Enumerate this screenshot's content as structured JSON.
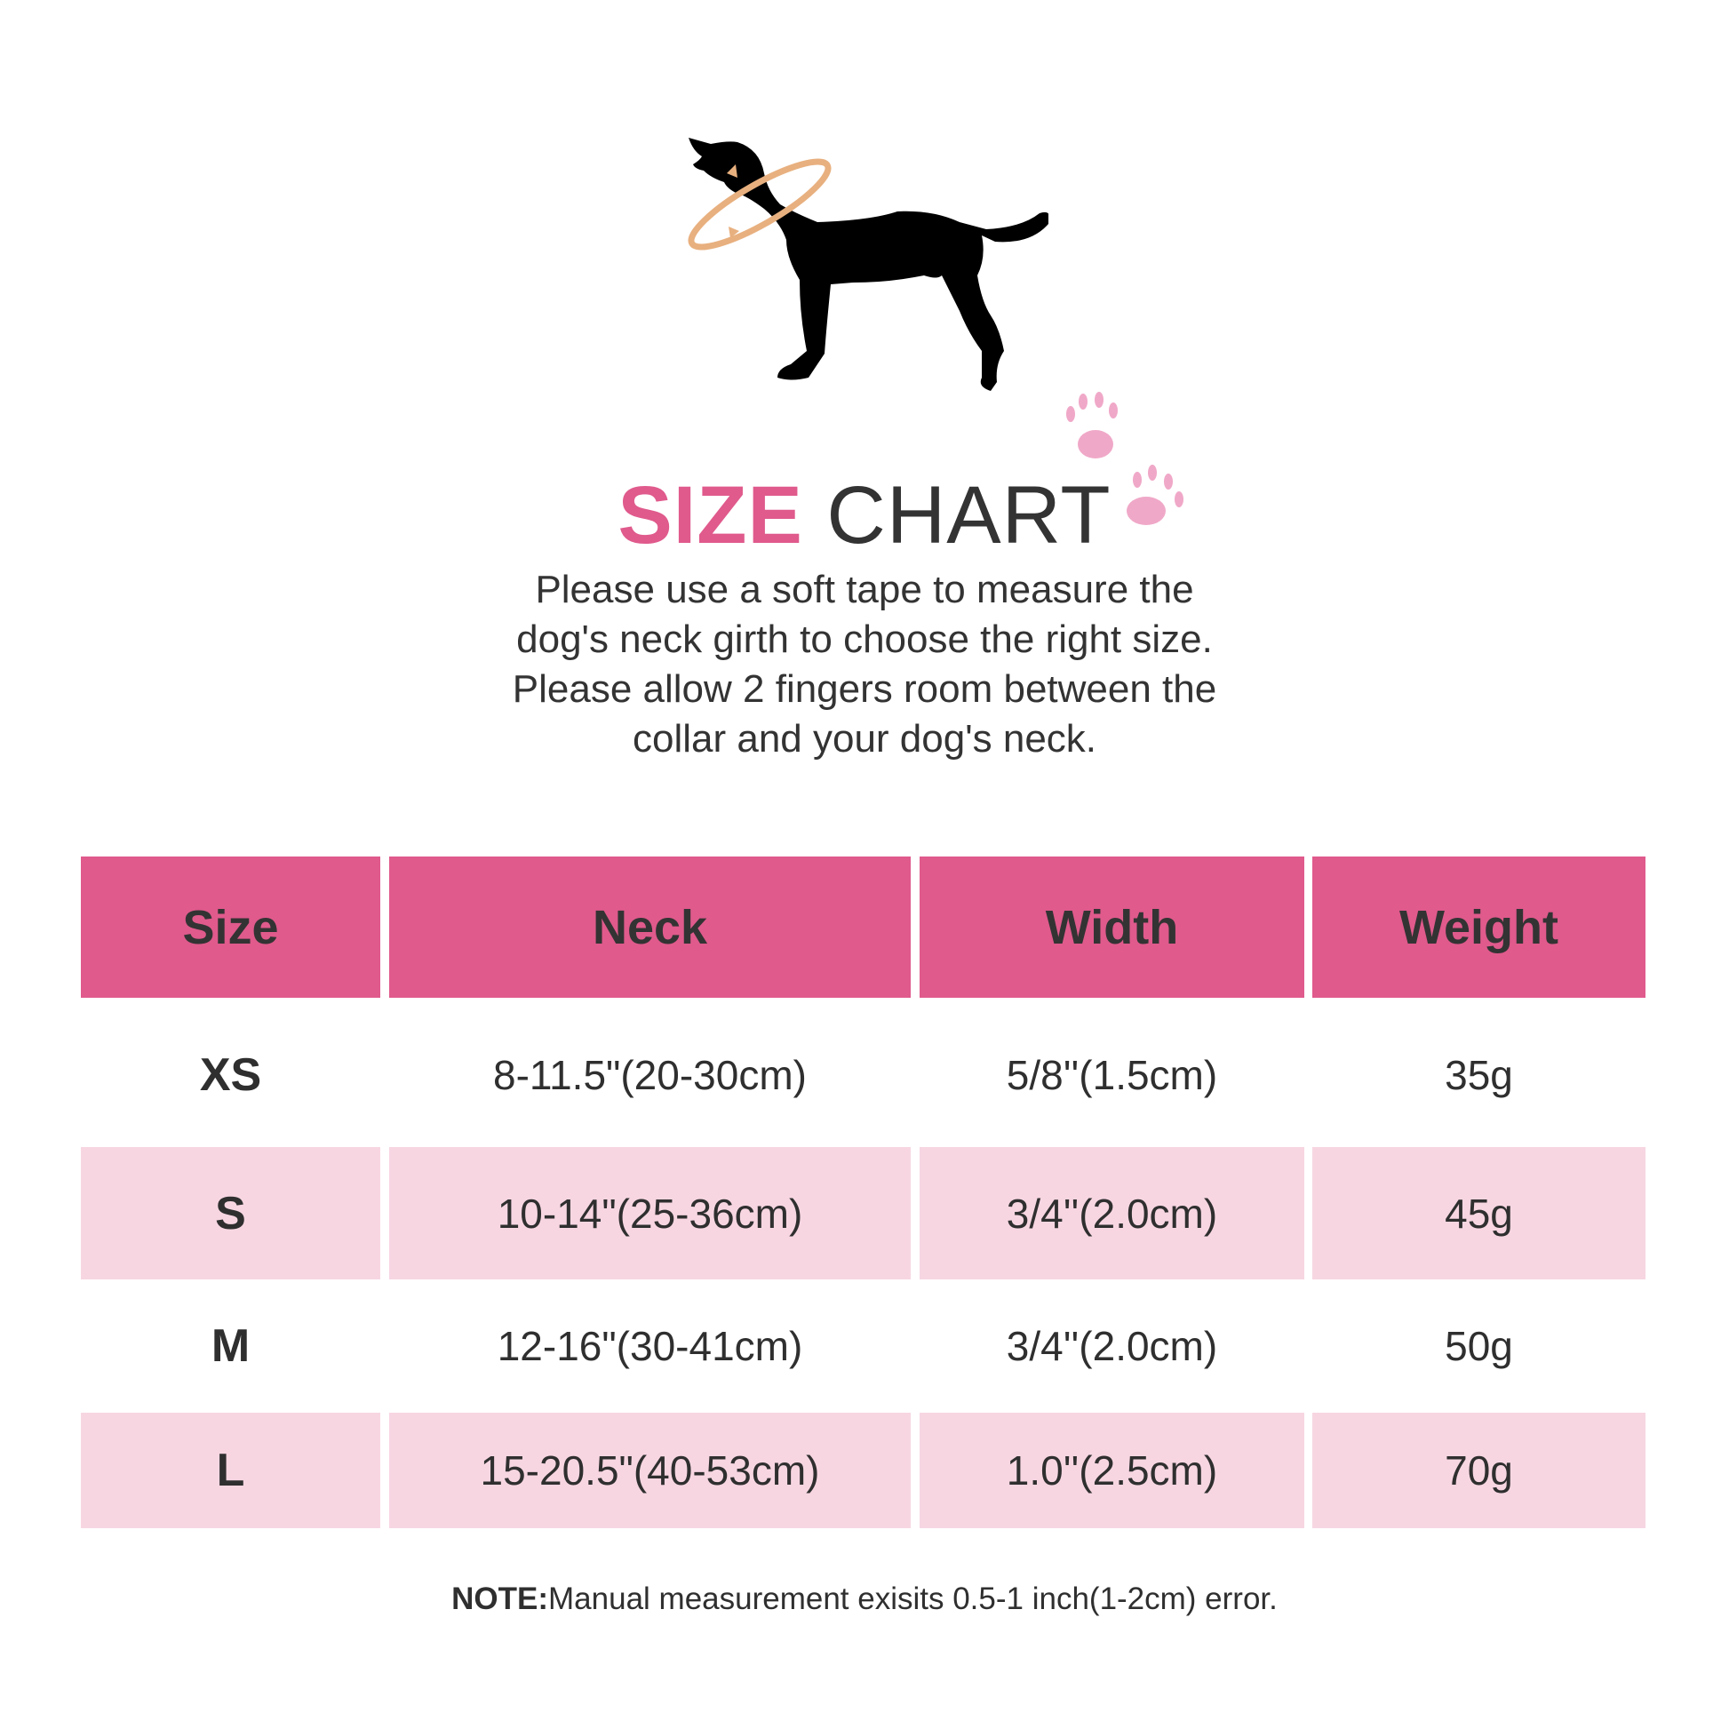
{
  "title": {
    "highlight": "SIZE",
    "rest": "CHART"
  },
  "description": [
    "Please use a soft tape to measure the",
    "dog's neck girth to choose the right size.",
    "Please allow 2 fingers room between the",
    "collar and your dog's neck."
  ],
  "table": {
    "headers": [
      "Size",
      "Neck",
      "Width",
      "Weight"
    ],
    "rows": [
      [
        "XS",
        "8-11.5\"(20-30cm)",
        "5/8''(1.5cm)",
        "35g"
      ],
      [
        "S",
        "10-14\"(25-36cm)",
        "3/4''(2.0cm)",
        "45g"
      ],
      [
        "M",
        "12-16\"(30-41cm)",
        "3/4''(2.0cm)",
        "50g"
      ],
      [
        "L",
        "15-20.5\"(40-53cm)",
        "1.0''(2.5cm)",
        "70g"
      ]
    ]
  },
  "note": {
    "label": "NOTE:",
    "text": "Manual measurement exisits 0.5-1 inch(1-2cm) error."
  },
  "colors": {
    "header": "#E05A8C",
    "row_alt": "#F7D6E2",
    "tape": "#E8B07F",
    "paw": "#F0A8C8"
  },
  "icons": [
    "dog-silhouette-icon",
    "measuring-tape-icon",
    "paw-print-icon"
  ]
}
